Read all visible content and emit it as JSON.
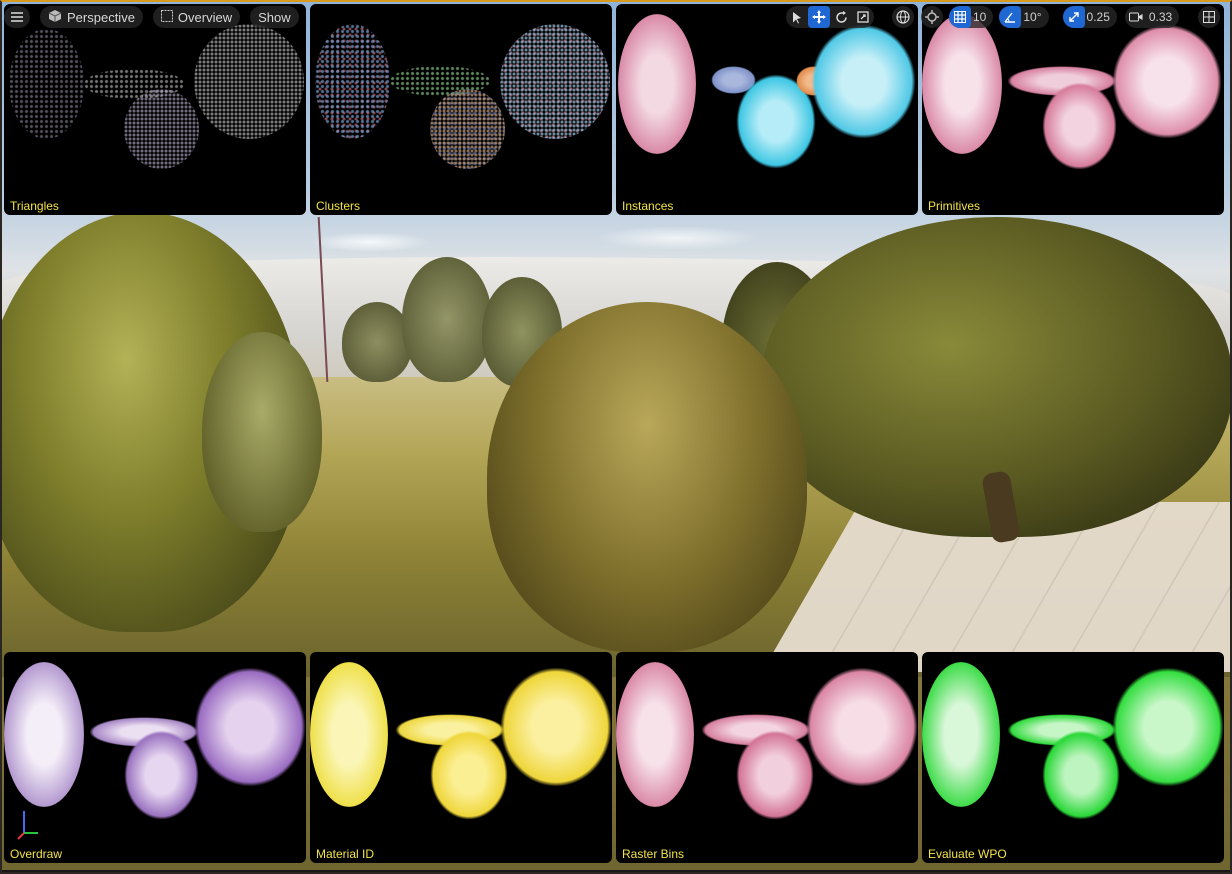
{
  "toolbar": {
    "perspective_label": "Perspective",
    "overview_label": "Overview",
    "show_label": "Show",
    "grid_snap_value": "10",
    "rotation_snap_value": "10°",
    "scale_snap_value": "0.25",
    "camera_speed_value": "0.33"
  },
  "panels": {
    "triangles": "Triangles",
    "clusters": "Clusters",
    "instances": "Instances",
    "primitives": "Primitives",
    "overdraw": "Overdraw",
    "material_id": "Material ID",
    "raster_bins": "Raster Bins",
    "evaluate_wpo": "Evaluate WPO"
  },
  "colors": {
    "accent": "#1f67d2",
    "panel_label": "#f2e34a",
    "frame_top": "#d99a1e"
  },
  "icons": [
    "hamburger-menu-icon",
    "cube-icon",
    "grid-icon",
    "select-arrow-icon",
    "move-icon",
    "rotate-icon",
    "scale-icon",
    "globe-icon",
    "surface-snap-icon",
    "grid-snap-icon",
    "angle-snap-icon",
    "scale-snap-icon",
    "camera-icon",
    "layout-icon",
    "axis-gizmo-icon"
  ]
}
